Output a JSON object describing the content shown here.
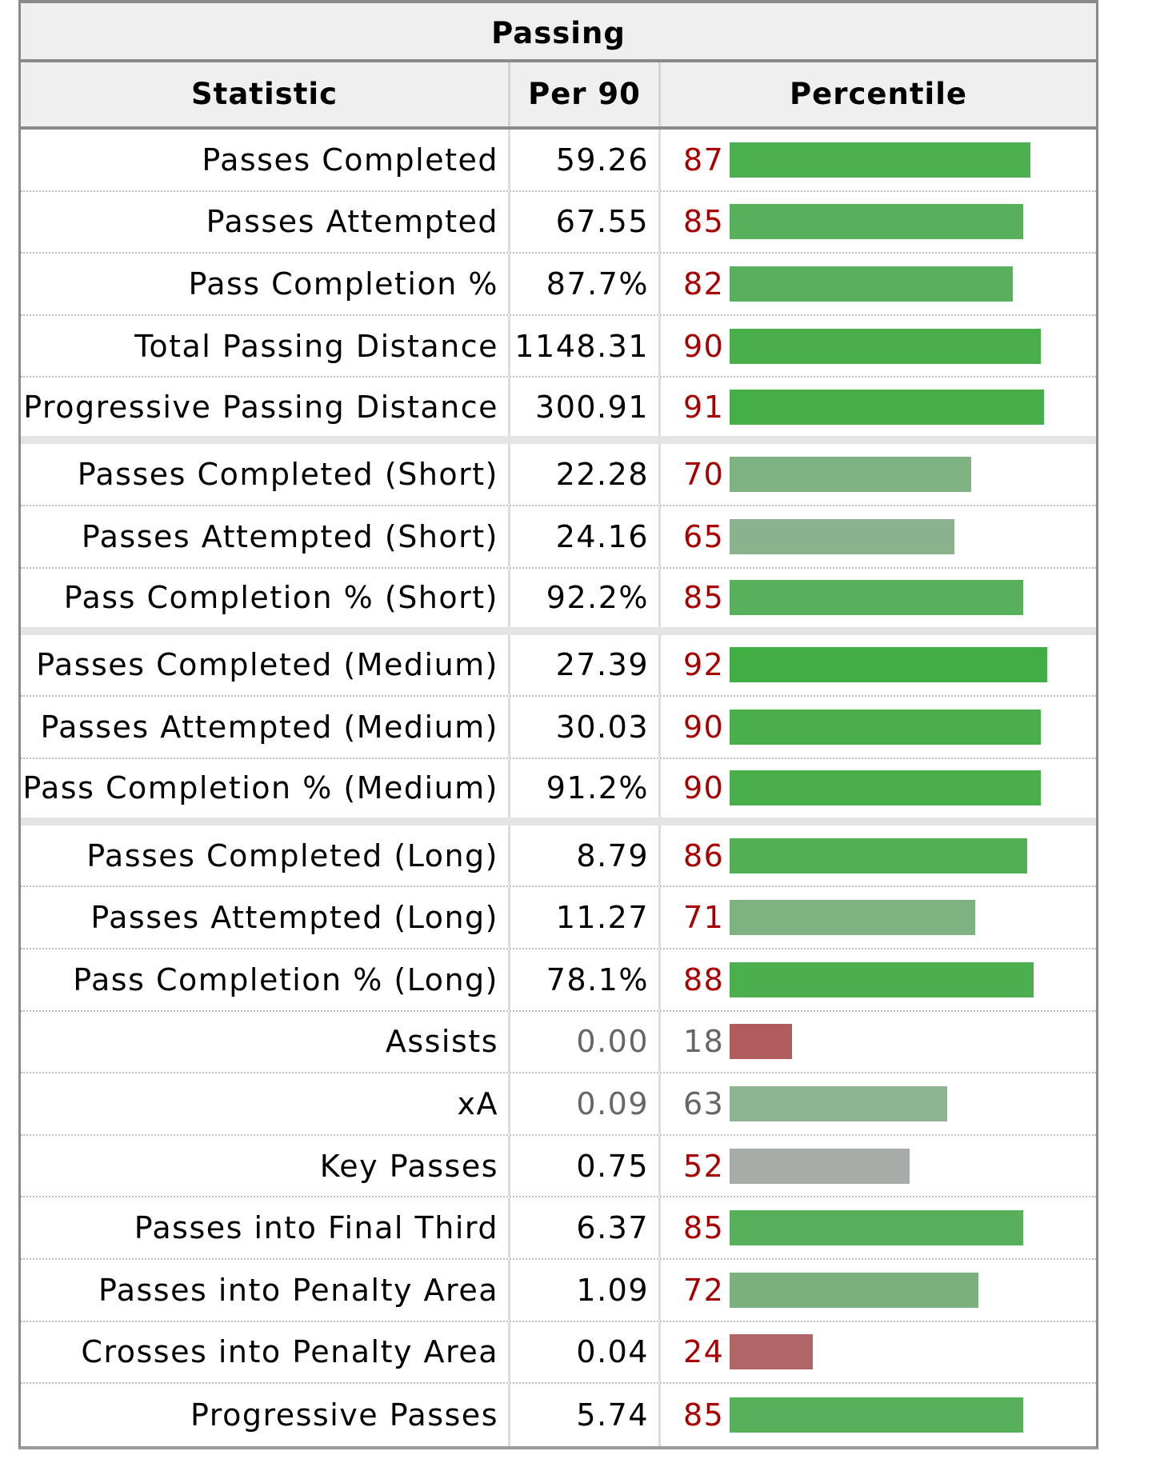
{
  "table": {
    "caption": "Passing",
    "headers": {
      "statistic": "Statistic",
      "per90": "Per 90",
      "percentile": "Percentile"
    },
    "rows": [
      {
        "stat": "Passes Completed",
        "per90": "59.26",
        "percentile": 87,
        "color": "#4caf50",
        "group_end": false,
        "muted": false
      },
      {
        "stat": "Passes Attempted",
        "per90": "67.55",
        "percentile": 85,
        "color": "#58b05a",
        "group_end": false,
        "muted": false
      },
      {
        "stat": "Pass Completion %",
        "per90": "87.7%",
        "percentile": 82,
        "color": "#5aaf5e",
        "group_end": false,
        "muted": false
      },
      {
        "stat": "Total Passing Distance",
        "per90": "1148.31",
        "percentile": 90,
        "color": "#48ae4a",
        "group_end": false,
        "muted": false
      },
      {
        "stat": "Progressive Passing Distance",
        "per90": "300.91",
        "percentile": 91,
        "color": "#45ae47",
        "group_end": true,
        "muted": false
      },
      {
        "stat": "Passes Completed (Short)",
        "per90": "22.28",
        "percentile": 70,
        "color": "#7fb283",
        "group_end": false,
        "muted": false
      },
      {
        "stat": "Passes Attempted (Short)",
        "per90": "24.16",
        "percentile": 65,
        "color": "#8ab38d",
        "group_end": false,
        "muted": false
      },
      {
        "stat": "Pass Completion % (Short)",
        "per90": "92.2%",
        "percentile": 85,
        "color": "#58b05a",
        "group_end": true,
        "muted": false
      },
      {
        "stat": "Passes Completed (Medium)",
        "per90": "27.39",
        "percentile": 92,
        "color": "#43ad45",
        "group_end": false,
        "muted": false
      },
      {
        "stat": "Passes Attempted (Medium)",
        "per90": "30.03",
        "percentile": 90,
        "color": "#48ae4a",
        "group_end": false,
        "muted": false
      },
      {
        "stat": "Pass Completion % (Medium)",
        "per90": "91.2%",
        "percentile": 90,
        "color": "#48ae4a",
        "group_end": true,
        "muted": false
      },
      {
        "stat": "Passes Completed (Long)",
        "per90": "8.79",
        "percentile": 86,
        "color": "#52af54",
        "group_end": false,
        "muted": false
      },
      {
        "stat": "Passes Attempted (Long)",
        "per90": "11.27",
        "percentile": 71,
        "color": "#7db281",
        "group_end": false,
        "muted": false
      },
      {
        "stat": "Pass Completion % (Long)",
        "per90": "78.1%",
        "percentile": 88,
        "color": "#4caf4f",
        "group_end": false,
        "muted": false
      },
      {
        "stat": "Assists",
        "per90": "0.00",
        "percentile": 18,
        "color": "#b05c5c",
        "group_end": false,
        "muted": true
      },
      {
        "stat": "xA",
        "per90": "0.09",
        "percentile": 63,
        "color": "#8eb391",
        "group_end": false,
        "muted": true
      },
      {
        "stat": "Key Passes",
        "per90": "0.75",
        "percentile": 52,
        "color": "#a8aca8",
        "group_end": false,
        "muted": false
      },
      {
        "stat": "Passes into Final Third",
        "per90": "6.37",
        "percentile": 85,
        "color": "#58b05a",
        "group_end": false,
        "muted": false
      },
      {
        "stat": "Passes into Penalty Area",
        "per90": "1.09",
        "percentile": 72,
        "color": "#7bb17f",
        "group_end": false,
        "muted": false
      },
      {
        "stat": "Crosses into Penalty Area",
        "per90": "0.04",
        "percentile": 24,
        "color": "#b06666",
        "group_end": false,
        "muted": false
      },
      {
        "stat": "Progressive Passes",
        "per90": "5.74",
        "percentile": 85,
        "color": "#58b05a",
        "group_end": false,
        "muted": false
      }
    ]
  }
}
